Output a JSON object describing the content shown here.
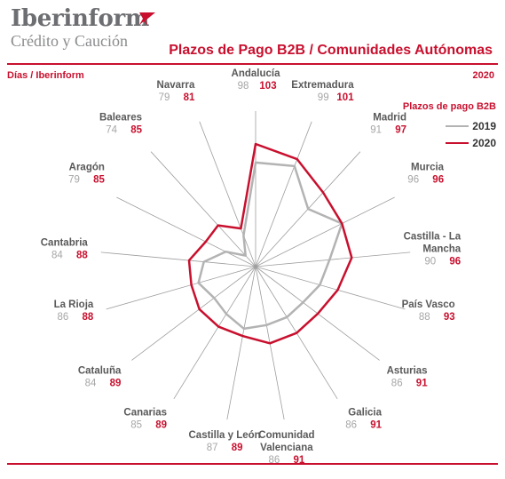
{
  "header": {
    "logo_name": "Iberinform",
    "logo_sub": "Crédito y Caución",
    "title": "Plazos de Pago B2B / Comunidades Autónomas",
    "subtitle_left": "Días / Iberinform",
    "subtitle_right": "2020"
  },
  "colors": {
    "accent": "#c8102e",
    "series_2019": "#b3b3b3",
    "series_2020": "#c8102e",
    "axis": "#9e9e9e",
    "logo_gray": "#6d6e71"
  },
  "chart_data": {
    "type": "radar",
    "title": "Plazos de Pago B2B / Comunidades Autónomas",
    "unit": "Días",
    "legend_title": "Plazos de pago B2B",
    "legend_position": "top-right",
    "grid": false,
    "categories": [
      "Andalucía",
      "Extremadura",
      "Madrid",
      "Murcia",
      "Castilla - La Mancha",
      "País Vasco",
      "Asturias",
      "Galicia",
      "Comunidad Valenciana",
      "Castilla y León",
      "Canarias",
      "Cataluña",
      "La Rioja",
      "Cantabria",
      "Aragón",
      "Baleares",
      "Navarra"
    ],
    "series": [
      {
        "name": "2019",
        "values": [
          98,
          99,
          91,
          96,
          90,
          88,
          86,
          86,
          86,
          87,
          85,
          84,
          86,
          84,
          79,
          74,
          79
        ]
      },
      {
        "name": "2020",
        "values": [
          103,
          101,
          97,
          96,
          96,
          93,
          91,
          91,
          91,
          89,
          89,
          89,
          88,
          88,
          85,
          85,
          81
        ]
      }
    ]
  }
}
